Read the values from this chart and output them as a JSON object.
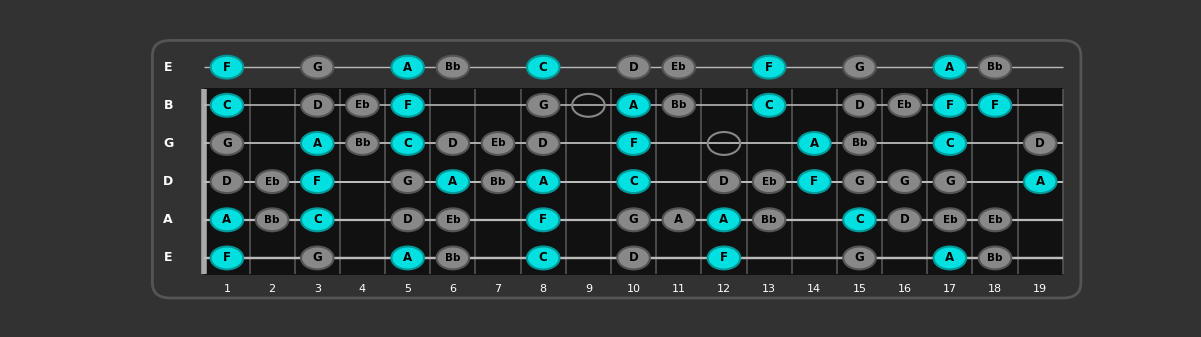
{
  "frets": 19,
  "string_labels_top_to_bottom": [
    "E",
    "B",
    "G",
    "D",
    "A",
    "E"
  ],
  "bg_color": "#323232",
  "fretboard_color": "#111111",
  "string_color": "#bbbbbb",
  "fret_color": "#555555",
  "nut_color": "#aaaaaa",
  "cyan_color": "#00e0e0",
  "gray_color": "#888888",
  "text_color": "#000000",
  "label_color": "#ffffff",
  "fret_numbers": [
    1,
    2,
    3,
    4,
    5,
    6,
    7,
    8,
    9,
    10,
    11,
    12,
    13,
    14,
    15,
    16,
    17,
    18,
    19
  ],
  "notes": [
    {
      "fret": 1,
      "string": 0,
      "note": "F",
      "color": "cyan"
    },
    {
      "fret": 1,
      "string": 1,
      "note": "C",
      "color": "cyan"
    },
    {
      "fret": 1,
      "string": 2,
      "note": "G",
      "color": "gray"
    },
    {
      "fret": 1,
      "string": 3,
      "note": "D",
      "color": "gray"
    },
    {
      "fret": 1,
      "string": 4,
      "note": "A",
      "color": "cyan"
    },
    {
      "fret": 1,
      "string": 5,
      "note": "F",
      "color": "cyan"
    },
    {
      "fret": 2,
      "string": 3,
      "note": "Eb",
      "color": "gray"
    },
    {
      "fret": 2,
      "string": 4,
      "note": "Bb",
      "color": "gray"
    },
    {
      "fret": 3,
      "string": 0,
      "note": "G",
      "color": "gray"
    },
    {
      "fret": 3,
      "string": 1,
      "note": "D",
      "color": "gray"
    },
    {
      "fret": 3,
      "string": 2,
      "note": "A",
      "color": "cyan"
    },
    {
      "fret": 3,
      "string": 3,
      "note": "F",
      "color": "cyan"
    },
    {
      "fret": 3,
      "string": 4,
      "note": "C",
      "color": "cyan"
    },
    {
      "fret": 3,
      "string": 5,
      "note": "G",
      "color": "gray"
    },
    {
      "fret": 4,
      "string": 1,
      "note": "Eb",
      "color": "gray"
    },
    {
      "fret": 4,
      "string": 2,
      "note": "Bb",
      "color": "gray"
    },
    {
      "fret": 5,
      "string": 0,
      "note": "A",
      "color": "cyan"
    },
    {
      "fret": 5,
      "string": 1,
      "note": "F",
      "color": "cyan"
    },
    {
      "fret": 5,
      "string": 2,
      "note": "C",
      "color": "cyan"
    },
    {
      "fret": 5,
      "string": 3,
      "note": "G",
      "color": "gray"
    },
    {
      "fret": 5,
      "string": 4,
      "note": "D",
      "color": "gray"
    },
    {
      "fret": 5,
      "string": 5,
      "note": "A",
      "color": "cyan"
    },
    {
      "fret": 6,
      "string": 0,
      "note": "Bb",
      "color": "gray"
    },
    {
      "fret": 6,
      "string": 2,
      "note": "D",
      "color": "gray"
    },
    {
      "fret": 6,
      "string": 3,
      "note": "A",
      "color": "cyan"
    },
    {
      "fret": 6,
      "string": 4,
      "note": "Eb",
      "color": "gray"
    },
    {
      "fret": 6,
      "string": 5,
      "note": "Bb",
      "color": "gray"
    },
    {
      "fret": 7,
      "string": 2,
      "note": "Eb",
      "color": "gray"
    },
    {
      "fret": 7,
      "string": 3,
      "note": "Bb",
      "color": "gray"
    },
    {
      "fret": 8,
      "string": 0,
      "note": "C",
      "color": "cyan"
    },
    {
      "fret": 8,
      "string": 1,
      "note": "G",
      "color": "gray"
    },
    {
      "fret": 8,
      "string": 2,
      "note": "D",
      "color": "gray"
    },
    {
      "fret": 8,
      "string": 3,
      "note": "A",
      "color": "cyan"
    },
    {
      "fret": 8,
      "string": 4,
      "note": "F",
      "color": "cyan"
    },
    {
      "fret": 8,
      "string": 5,
      "note": "C",
      "color": "cyan"
    },
    {
      "fret": 9,
      "string": 1,
      "note": "",
      "color": "open"
    },
    {
      "fret": 10,
      "string": 0,
      "note": "D",
      "color": "gray"
    },
    {
      "fret": 10,
      "string": 1,
      "note": "A",
      "color": "cyan"
    },
    {
      "fret": 10,
      "string": 2,
      "note": "F",
      "color": "cyan"
    },
    {
      "fret": 10,
      "string": 3,
      "note": "C",
      "color": "cyan"
    },
    {
      "fret": 10,
      "string": 4,
      "note": "G",
      "color": "gray"
    },
    {
      "fret": 10,
      "string": 5,
      "note": "D",
      "color": "gray"
    },
    {
      "fret": 11,
      "string": 0,
      "note": "Eb",
      "color": "gray"
    },
    {
      "fret": 11,
      "string": 1,
      "note": "Bb",
      "color": "gray"
    },
    {
      "fret": 11,
      "string": 4,
      "note": "A",
      "color": "gray"
    },
    {
      "fret": 12,
      "string": 2,
      "note": "",
      "color": "open"
    },
    {
      "fret": 12,
      "string": 3,
      "note": "D",
      "color": "gray"
    },
    {
      "fret": 12,
      "string": 4,
      "note": "A",
      "color": "cyan"
    },
    {
      "fret": 12,
      "string": 5,
      "note": "F",
      "color": "cyan"
    },
    {
      "fret": 13,
      "string": 0,
      "note": "F",
      "color": "cyan"
    },
    {
      "fret": 13,
      "string": 1,
      "note": "C",
      "color": "cyan"
    },
    {
      "fret": 13,
      "string": 3,
      "note": "Eb",
      "color": "gray"
    },
    {
      "fret": 13,
      "string": 4,
      "note": "Bb",
      "color": "gray"
    },
    {
      "fret": 14,
      "string": 2,
      "note": "A",
      "color": "cyan"
    },
    {
      "fret": 14,
      "string": 3,
      "note": "F",
      "color": "cyan"
    },
    {
      "fret": 15,
      "string": 0,
      "note": "G",
      "color": "gray"
    },
    {
      "fret": 15,
      "string": 1,
      "note": "D",
      "color": "gray"
    },
    {
      "fret": 15,
      "string": 2,
      "note": "Bb",
      "color": "gray"
    },
    {
      "fret": 15,
      "string": 3,
      "note": "G",
      "color": "gray"
    },
    {
      "fret": 15,
      "string": 4,
      "note": "C",
      "color": "cyan"
    },
    {
      "fret": 15,
      "string": 5,
      "note": "G",
      "color": "gray"
    },
    {
      "fret": 16,
      "string": 1,
      "note": "Eb",
      "color": "gray"
    },
    {
      "fret": 16,
      "string": 3,
      "note": "G",
      "color": "gray"
    },
    {
      "fret": 16,
      "string": 4,
      "note": "D",
      "color": "gray"
    },
    {
      "fret": 17,
      "string": 0,
      "note": "A",
      "color": "cyan"
    },
    {
      "fret": 17,
      "string": 1,
      "note": "F",
      "color": "cyan"
    },
    {
      "fret": 17,
      "string": 2,
      "note": "C",
      "color": "cyan"
    },
    {
      "fret": 17,
      "string": 3,
      "note": "G",
      "color": "gray"
    },
    {
      "fret": 17,
      "string": 4,
      "note": "Eb",
      "color": "gray"
    },
    {
      "fret": 17,
      "string": 5,
      "note": "A",
      "color": "cyan"
    },
    {
      "fret": 18,
      "string": 0,
      "note": "Bb",
      "color": "gray"
    },
    {
      "fret": 18,
      "string": 1,
      "note": "F",
      "color": "cyan"
    },
    {
      "fret": 18,
      "string": 4,
      "note": "Eb",
      "color": "gray"
    },
    {
      "fret": 18,
      "string": 5,
      "note": "Bb",
      "color": "gray"
    },
    {
      "fret": 19,
      "string": 2,
      "note": "D",
      "color": "gray"
    },
    {
      "fret": 19,
      "string": 3,
      "note": "A",
      "color": "cyan"
    }
  ]
}
